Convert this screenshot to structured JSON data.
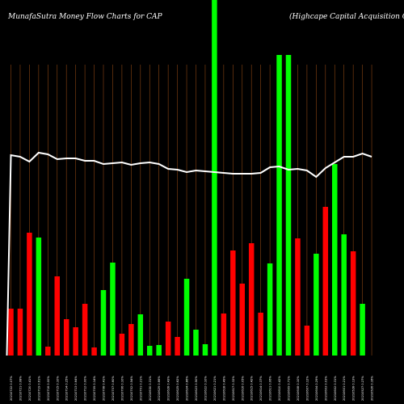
{
  "header": {
    "title_left": "MunafaSutra  Money Flow  Charts for CAP",
    "title_right": "(Highcape   Capital Acquisition  C"
  },
  "colors": {
    "background": "#000000",
    "grid": "#8B4513",
    "bar_up": "#00ff00",
    "bar_down": "#ff0000",
    "line": "#ffffff"
  },
  "chart_data": {
    "type": "bar",
    "title": "MunafaSutra  Money Flow  Charts for CAP",
    "subtitle": "(Highcape   Capital Acquisition  C",
    "grid": true,
    "categories": [
      "20210722 0.07%",
      "20210721 0.08%",
      "20210720 0.41%",
      "20210719 0.61%",
      "20210716 0.00%",
      "20210715 0.10%",
      "20210714 0.25%",
      "20210713 0.64%",
      "20210712 0.00%",
      "20210709 0.14%",
      "20210708 0.41%",
      "20210707 0.60%",
      "20210706 0.10%",
      "20210702 0.54%",
      "20210701 0.21%",
      "20210630 0.31%",
      "20210629 0.66%",
      "20210628 0.43%",
      "20210625 0.62%",
      "20210624 0.86%",
      "20210623 0.50%",
      "20210622 0.10%",
      "20210621 0.21%",
      "20210618 0.49%",
      "20210617 0.32%",
      "20210616 0.05%",
      "20210615 0.42%",
      "20210614 0.37%",
      "20210611 0.06%",
      "20210610 0.42%",
      "20210609 0.71%",
      "20210608 0.10%",
      "20210607 0.12%",
      "20210604 0.29%",
      "20210603 0.03%",
      "20210602 0.31%",
      "20210601 0.21%",
      "20210528 0.13%",
      "20210527 0.27%",
      "20210526 0.16%"
    ],
    "series": [
      {
        "bar_values": [
          58,
          58,
          152,
          146,
          11,
          98,
          45,
          35,
          64,
          10,
          81,
          115,
          27,
          39,
          51,
          12,
          13,
          42,
          23,
          95,
          32,
          14,
          500,
          52,
          130,
          89,
          139,
          53,
          114,
          372,
          372,
          145,
          37,
          126,
          184,
          237,
          150,
          129,
          64,
          0
        ],
        "bar_colors": [
          "red",
          "red",
          "red",
          "green",
          "red",
          "red",
          "red",
          "red",
          "red",
          "red",
          "green",
          "green",
          "red",
          "red",
          "green",
          "green",
          "green",
          "red",
          "red",
          "green",
          "green",
          "green",
          "green",
          "red",
          "red",
          "red",
          "red",
          "red",
          "green",
          "green",
          "green",
          "red",
          "red",
          "green",
          "red",
          "green",
          "green",
          "red",
          "green",
          "green"
        ],
        "line_values": [
          248,
          246,
          240,
          251,
          249,
          243,
          244,
          244,
          241,
          241,
          237,
          238,
          239,
          236,
          238,
          239,
          237,
          231,
          230,
          227,
          229,
          228,
          227,
          226,
          225,
          225,
          225,
          226,
          233,
          234,
          230,
          231,
          229,
          221,
          232,
          239,
          246,
          246,
          250,
          246
        ]
      }
    ],
    "ylim": [
      0,
      250
    ]
  }
}
